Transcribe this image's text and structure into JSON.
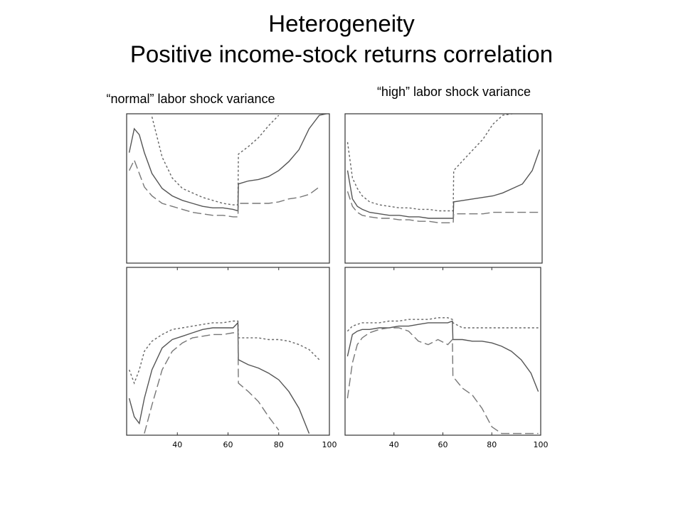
{
  "slide": {
    "title": [
      "Heterogeneity",
      "Positive income-stock returns correlation"
    ]
  },
  "chart_data": [
    {
      "type": "line",
      "subtitle": "“normal” labor shock variance",
      "xlim": [
        20,
        100
      ],
      "ylim": [
        0,
        1
      ],
      "x": [
        21,
        23,
        25,
        27,
        30,
        34,
        38,
        42,
        46,
        50,
        54,
        58,
        62,
        63.9,
        64.1,
        68,
        72,
        76,
        80,
        84,
        88,
        92,
        96,
        99
      ],
      "series": [
        {
          "color": "#666666",
          "dash": "short",
          "values": [
            null,
            null,
            null,
            null,
            0.98,
            0.71,
            0.57,
            0.5,
            0.47,
            0.44,
            0.42,
            0.4,
            0.39,
            0.39,
            0.73,
            0.78,
            0.84,
            0.92,
            0.99,
            null,
            null,
            null,
            null,
            null
          ]
        },
        {
          "color": "#555555",
          "dash": "solid",
          "values": [
            0.74,
            0.9,
            0.86,
            0.74,
            0.6,
            0.5,
            0.45,
            0.42,
            0.4,
            0.38,
            0.37,
            0.37,
            0.36,
            0.35,
            0.53,
            0.55,
            0.56,
            0.58,
            0.62,
            0.68,
            0.76,
            0.9,
            0.99,
            1.0
          ]
        },
        {
          "color": "#777777",
          "dash": "long",
          "values": [
            0.62,
            0.69,
            0.6,
            0.51,
            0.45,
            0.4,
            0.38,
            0.36,
            0.34,
            0.33,
            0.32,
            0.32,
            0.31,
            0.31,
            0.4,
            0.4,
            0.4,
            0.4,
            0.41,
            0.43,
            0.44,
            0.46,
            0.51,
            null
          ]
        }
      ]
    },
    {
      "type": "line",
      "subtitle": "“high” labor shock variance",
      "xlim": [
        20,
        100
      ],
      "ylim": [
        0,
        1
      ],
      "x": [
        21,
        23,
        25,
        27,
        30,
        34,
        38,
        42,
        46,
        50,
        54,
        58,
        62,
        63.9,
        64.1,
        68,
        72,
        76,
        80,
        84,
        88,
        92,
        96,
        99
      ],
      "series": [
        {
          "color": "#666666",
          "dash": "short",
          "values": [
            0.81,
            0.57,
            0.5,
            0.45,
            0.41,
            0.39,
            0.38,
            0.37,
            0.37,
            0.36,
            0.36,
            0.35,
            0.35,
            0.35,
            0.62,
            0.69,
            0.76,
            0.83,
            0.93,
            0.99,
            1.0,
            null,
            null,
            null
          ]
        },
        {
          "color": "#555555",
          "dash": "solid",
          "values": [
            0.62,
            0.43,
            0.38,
            0.36,
            0.34,
            0.33,
            0.32,
            0.32,
            0.31,
            0.31,
            0.3,
            0.3,
            0.3,
            0.3,
            0.41,
            0.42,
            0.43,
            0.44,
            0.45,
            0.47,
            0.5,
            0.53,
            0.62,
            0.76
          ]
        },
        {
          "color": "#777777",
          "dash": "long",
          "values": [
            0.48,
            0.38,
            0.34,
            0.32,
            0.31,
            0.3,
            0.3,
            0.29,
            0.29,
            0.28,
            0.28,
            0.27,
            0.27,
            0.27,
            0.33,
            0.33,
            0.33,
            0.33,
            0.34,
            0.34,
            0.34,
            0.34,
            0.34,
            0.34
          ]
        }
      ]
    },
    {
      "type": "line",
      "xlim": [
        20,
        100
      ],
      "ylim": [
        0,
        1
      ],
      "xticks": [
        40,
        60,
        80,
        100
      ],
      "x": [
        21,
        23,
        25,
        27,
        30,
        34,
        38,
        42,
        46,
        50,
        54,
        58,
        62,
        63.9,
        64.1,
        68,
        72,
        76,
        80,
        84,
        88,
        92,
        96,
        99
      ],
      "series": [
        {
          "color": "#666666",
          "dash": "short",
          "values": [
            0.39,
            0.31,
            0.39,
            0.5,
            0.56,
            0.6,
            0.63,
            0.64,
            0.65,
            0.66,
            0.67,
            0.67,
            0.68,
            0.68,
            0.58,
            0.58,
            0.58,
            0.57,
            0.57,
            0.56,
            0.54,
            0.51,
            0.45,
            null
          ]
        },
        {
          "color": "#555555",
          "dash": "solid",
          "values": [
            0.22,
            0.11,
            0.07,
            0.22,
            0.39,
            0.52,
            0.57,
            0.59,
            0.61,
            0.63,
            0.64,
            0.64,
            0.64,
            0.67,
            0.45,
            0.42,
            0.4,
            0.37,
            0.33,
            0.26,
            0.16,
            0.01,
            null,
            null
          ]
        },
        {
          "color": "#777777",
          "dash": "long",
          "values": [
            null,
            null,
            null,
            0.01,
            0.18,
            0.39,
            0.5,
            0.55,
            0.58,
            0.59,
            0.6,
            0.6,
            0.61,
            0.61,
            0.31,
            0.26,
            0.2,
            0.11,
            0.03,
            null,
            null,
            null,
            null,
            null
          ]
        }
      ]
    },
    {
      "type": "line",
      "xlim": [
        20,
        100
      ],
      "ylim": [
        0,
        1
      ],
      "xticks": [
        40,
        60,
        80,
        100
      ],
      "x": [
        21,
        23,
        25,
        27,
        30,
        34,
        38,
        42,
        46,
        50,
        54,
        58,
        62,
        63.9,
        64.1,
        68,
        72,
        76,
        80,
        84,
        88,
        92,
        96,
        99
      ],
      "series": [
        {
          "color": "#666666",
          "dash": "short",
          "values": [
            0.62,
            0.65,
            0.66,
            0.67,
            0.67,
            0.67,
            0.68,
            0.68,
            0.69,
            0.69,
            0.69,
            0.7,
            0.7,
            0.69,
            0.67,
            0.64,
            0.64,
            0.64,
            0.64,
            0.64,
            0.64,
            0.64,
            0.64,
            0.64
          ]
        },
        {
          "color": "#555555",
          "dash": "solid",
          "values": [
            0.47,
            0.6,
            0.62,
            0.63,
            0.63,
            0.64,
            0.64,
            0.65,
            0.65,
            0.66,
            0.67,
            0.67,
            0.67,
            0.68,
            0.57,
            0.57,
            0.56,
            0.56,
            0.55,
            0.53,
            0.5,
            0.45,
            0.37,
            0.26
          ]
        },
        {
          "color": "#777777",
          "dash": "long",
          "values": [
            0.22,
            0.43,
            0.54,
            0.58,
            0.61,
            0.63,
            0.64,
            0.64,
            0.62,
            0.56,
            0.54,
            0.57,
            0.54,
            0.57,
            0.35,
            0.28,
            0.24,
            0.16,
            0.05,
            0.01,
            0.01,
            0.01,
            0.01,
            0.01
          ]
        }
      ]
    }
  ]
}
